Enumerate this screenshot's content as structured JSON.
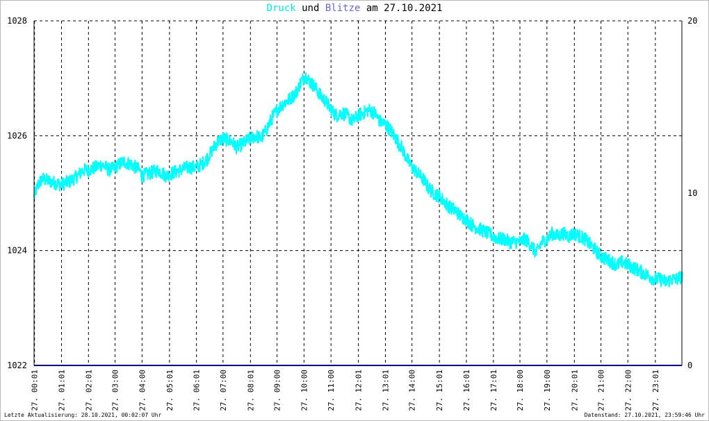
{
  "header": {
    "title_word1": "Druck",
    "title_word2": "und",
    "title_word3": "Blitze",
    "title_word4": "am 27.10.2021"
  },
  "footer": {
    "left": "Letzte Aktualisierung: 28.10.2021, 00:02:07 Uhr",
    "right": "Datenstand: 27.10.2021, 23:59:46 Uhr"
  },
  "colors": {
    "pressure": "#00ffff",
    "lightning": "#6666cc",
    "lightning_baseline": "#000080",
    "title_druck": "#00e5e5",
    "title_blitze": "#6666cc",
    "grid": "#000000"
  },
  "chart_data": {
    "type": "line",
    "title": "Druck und Blitze am 27.10.2021",
    "grid": true,
    "y_left": {
      "ylim": [
        1022,
        1028
      ],
      "ticks": [
        "1022",
        "1024",
        "1026",
        "1028"
      ]
    },
    "y_right": {
      "ylim": [
        0,
        20
      ],
      "ticks": [
        "0",
        "10",
        "20"
      ]
    },
    "x_range_hours": [
      0,
      24
    ],
    "x_ticks": [
      {
        "h": 0.0167,
        "label": "27. 00:01"
      },
      {
        "h": 1.0167,
        "label": "27. 01:01"
      },
      {
        "h": 2.0167,
        "label": "27. 02:01"
      },
      {
        "h": 3.0,
        "label": "27. 03:00"
      },
      {
        "h": 4.0,
        "label": "27. 04:00"
      },
      {
        "h": 5.0167,
        "label": "27. 05:01"
      },
      {
        "h": 6.0167,
        "label": "27. 06:01"
      },
      {
        "h": 7.0,
        "label": "27. 07:00"
      },
      {
        "h": 8.0167,
        "label": "27. 08:01"
      },
      {
        "h": 9.0,
        "label": "27. 09:00"
      },
      {
        "h": 10.0,
        "label": "27. 10:00"
      },
      {
        "h": 11.0,
        "label": "27. 11:00"
      },
      {
        "h": 12.0167,
        "label": "27. 12:01"
      },
      {
        "h": 13.0167,
        "label": "27. 13:01"
      },
      {
        "h": 14.0,
        "label": "27. 14:00"
      },
      {
        "h": 15.0167,
        "label": "27. 15:01"
      },
      {
        "h": 16.0167,
        "label": "27. 16:01"
      },
      {
        "h": 17.0167,
        "label": "27. 17:01"
      },
      {
        "h": 18.0,
        "label": "27. 18:00"
      },
      {
        "h": 19.0,
        "label": "27. 19:00"
      },
      {
        "h": 20.0167,
        "label": "27. 20:01"
      },
      {
        "h": 21.0,
        "label": "27. 21:00"
      },
      {
        "h": 22.0,
        "label": "27. 22:00"
      },
      {
        "h": 23.0167,
        "label": "27. 23:01"
      }
    ],
    "series": [
      {
        "name": "Druck",
        "axis": "left",
        "points": [
          [
            0.0,
            1024.95
          ],
          [
            0.15,
            1025.15
          ],
          [
            0.3,
            1025.25
          ],
          [
            0.6,
            1025.2
          ],
          [
            1.0,
            1025.15
          ],
          [
            1.3,
            1025.2
          ],
          [
            1.6,
            1025.3
          ],
          [
            1.8,
            1025.4
          ],
          [
            2.0,
            1025.4
          ],
          [
            2.3,
            1025.45
          ],
          [
            2.5,
            1025.5
          ],
          [
            2.8,
            1025.4
          ],
          [
            3.0,
            1025.45
          ],
          [
            3.3,
            1025.55
          ],
          [
            3.6,
            1025.5
          ],
          [
            3.9,
            1025.4
          ],
          [
            4.0,
            1025.3
          ],
          [
            4.3,
            1025.35
          ],
          [
            4.6,
            1025.4
          ],
          [
            4.9,
            1025.3
          ],
          [
            5.1,
            1025.35
          ],
          [
            5.4,
            1025.4
          ],
          [
            5.7,
            1025.45
          ],
          [
            6.0,
            1025.45
          ],
          [
            6.2,
            1025.5
          ],
          [
            6.4,
            1025.6
          ],
          [
            6.6,
            1025.75
          ],
          [
            6.8,
            1025.9
          ],
          [
            7.0,
            1025.95
          ],
          [
            7.3,
            1025.9
          ],
          [
            7.5,
            1025.8
          ],
          [
            7.7,
            1025.85
          ],
          [
            8.0,
            1025.95
          ],
          [
            8.2,
            1026.0
          ],
          [
            8.4,
            1025.95
          ],
          [
            8.6,
            1026.1
          ],
          [
            8.8,
            1026.3
          ],
          [
            9.0,
            1026.45
          ],
          [
            9.2,
            1026.55
          ],
          [
            9.5,
            1026.65
          ],
          [
            9.7,
            1026.75
          ],
          [
            9.9,
            1026.95
          ],
          [
            10.05,
            1027.05
          ],
          [
            10.2,
            1026.95
          ],
          [
            10.4,
            1026.85
          ],
          [
            10.6,
            1026.7
          ],
          [
            10.8,
            1026.6
          ],
          [
            11.0,
            1026.45
          ],
          [
            11.2,
            1026.35
          ],
          [
            11.4,
            1026.4
          ],
          [
            11.6,
            1026.35
          ],
          [
            11.8,
            1026.25
          ],
          [
            12.0,
            1026.35
          ],
          [
            12.2,
            1026.4
          ],
          [
            12.4,
            1026.45
          ],
          [
            12.6,
            1026.4
          ],
          [
            12.8,
            1026.25
          ],
          [
            13.0,
            1026.2
          ],
          [
            13.2,
            1026.1
          ],
          [
            13.4,
            1025.95
          ],
          [
            13.6,
            1025.8
          ],
          [
            13.8,
            1025.6
          ],
          [
            14.0,
            1025.45
          ],
          [
            14.2,
            1025.35
          ],
          [
            14.4,
            1025.25
          ],
          [
            14.6,
            1025.1
          ],
          [
            14.8,
            1025.0
          ],
          [
            15.0,
            1024.95
          ],
          [
            15.2,
            1024.85
          ],
          [
            15.4,
            1024.75
          ],
          [
            15.6,
            1024.7
          ],
          [
            15.8,
            1024.6
          ],
          [
            16.0,
            1024.55
          ],
          [
            16.2,
            1024.45
          ],
          [
            16.4,
            1024.4
          ],
          [
            16.6,
            1024.35
          ],
          [
            16.8,
            1024.3
          ],
          [
            17.0,
            1024.25
          ],
          [
            17.2,
            1024.2
          ],
          [
            17.4,
            1024.2
          ],
          [
            17.6,
            1024.15
          ],
          [
            17.8,
            1024.15
          ],
          [
            18.0,
            1024.15
          ],
          [
            18.2,
            1024.2
          ],
          [
            18.4,
            1024.1
          ],
          [
            18.6,
            1023.95
          ],
          [
            18.8,
            1024.15
          ],
          [
            19.0,
            1024.2
          ],
          [
            19.2,
            1024.3
          ],
          [
            19.4,
            1024.25
          ],
          [
            19.6,
            1024.3
          ],
          [
            19.8,
            1024.25
          ],
          [
            20.0,
            1024.3
          ],
          [
            20.2,
            1024.25
          ],
          [
            20.4,
            1024.2
          ],
          [
            20.6,
            1024.1
          ],
          [
            20.8,
            1024.0
          ],
          [
            21.0,
            1023.9
          ],
          [
            21.2,
            1023.85
          ],
          [
            21.4,
            1023.8
          ],
          [
            21.6,
            1023.75
          ],
          [
            21.8,
            1023.8
          ],
          [
            22.0,
            1023.75
          ],
          [
            22.2,
            1023.7
          ],
          [
            22.4,
            1023.65
          ],
          [
            22.6,
            1023.6
          ],
          [
            22.8,
            1023.55
          ],
          [
            23.0,
            1023.5
          ],
          [
            23.2,
            1023.5
          ],
          [
            23.4,
            1023.45
          ],
          [
            23.6,
            1023.5
          ],
          [
            23.8,
            1023.5
          ],
          [
            24.0,
            1023.55
          ]
        ]
      },
      {
        "name": "Blitze",
        "axis": "right",
        "points": [
          [
            0,
            0
          ],
          [
            24,
            0
          ]
        ]
      }
    ]
  }
}
